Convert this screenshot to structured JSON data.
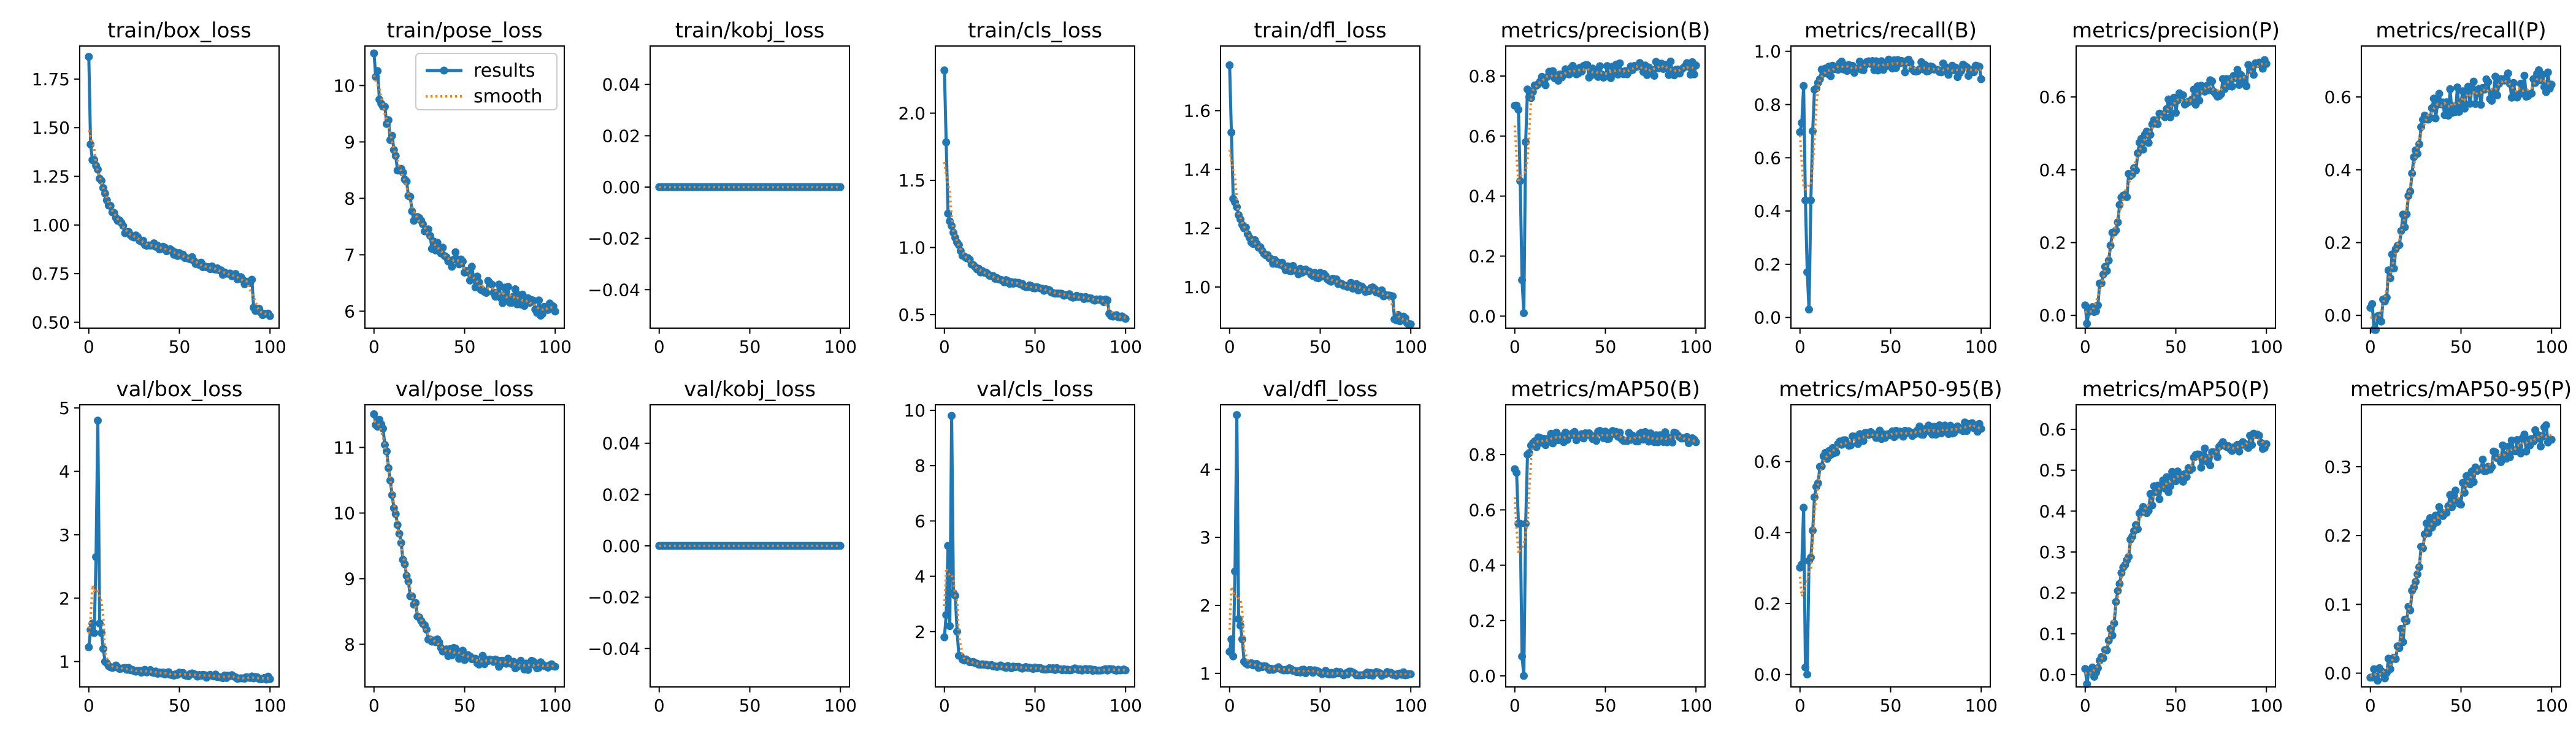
{
  "chart_data": {
    "type": "line",
    "legend": {
      "location": "upper-right",
      "panel": "train/pose_loss",
      "items": [
        {
          "label": "results",
          "color": "#1f77b4",
          "style": "solid-with-markers"
        },
        {
          "label": "smooth",
          "color": "#ff7f0e",
          "style": "dotted"
        }
      ]
    },
    "colors": {
      "results": "#1f77b4",
      "smooth": "#ff7f0e"
    },
    "x": {
      "ylim_note": "epochs 0-100",
      "xlim": [
        -5,
        105
      ],
      "xticks": [
        0,
        50,
        100
      ]
    },
    "panels": [
      {
        "title": "train/box_loss",
        "ylim": [
          0.47,
          1.92
        ],
        "yticks": [
          0.5,
          0.75,
          1.0,
          1.25,
          1.5,
          1.75
        ],
        "ytick_labels": [
          "0.50",
          "0.75",
          "1.00",
          "1.25",
          "1.50",
          "1.75"
        ],
        "kp": [
          [
            0,
            1.86
          ],
          [
            1,
            1.42
          ],
          [
            2,
            1.33
          ],
          [
            3,
            1.32
          ],
          [
            5,
            1.28
          ],
          [
            10,
            1.12
          ],
          [
            20,
            0.97
          ],
          [
            30,
            0.91
          ],
          [
            40,
            0.88
          ],
          [
            50,
            0.85
          ],
          [
            60,
            0.81
          ],
          [
            70,
            0.77
          ],
          [
            80,
            0.74
          ],
          [
            88,
            0.7
          ],
          [
            90,
            0.71
          ],
          [
            91,
            0.57
          ],
          [
            95,
            0.55
          ],
          [
            100,
            0.53
          ]
        ],
        "noise": 0.015,
        "spikes": []
      },
      {
        "title": "train/pose_loss",
        "ylim": [
          5.7,
          10.7
        ],
        "yticks": [
          6,
          7,
          8,
          9,
          10
        ],
        "ytick_labels": [
          "6",
          "7",
          "8",
          "9",
          "10"
        ],
        "kp": [
          [
            0,
            10.5
          ],
          [
            3,
            9.9
          ],
          [
            10,
            9.0
          ],
          [
            20,
            7.9
          ],
          [
            30,
            7.3
          ],
          [
            40,
            7.0
          ],
          [
            50,
            6.75
          ],
          [
            60,
            6.5
          ],
          [
            70,
            6.3
          ],
          [
            80,
            6.2
          ],
          [
            90,
            6.1
          ],
          [
            100,
            6.05
          ]
        ],
        "noise": 0.18,
        "spikes": []
      },
      {
        "title": "train/kobj_loss",
        "ylim": [
          -0.055,
          0.055
        ],
        "yticks": [
          -0.04,
          -0.02,
          0.0,
          0.02,
          0.04
        ],
        "ytick_labels": [
          "−0.04",
          "−0.02",
          "0.00",
          "0.02",
          "0.04"
        ],
        "kp": [
          [
            0,
            0
          ],
          [
            100,
            0
          ]
        ],
        "noise": 0,
        "spikes": []
      },
      {
        "title": "train/cls_loss",
        "ylim": [
          0.4,
          2.5
        ],
        "yticks": [
          0.5,
          1.0,
          1.5,
          2.0
        ],
        "ytick_labels": [
          "0.5",
          "1.0",
          "1.5",
          "2.0"
        ],
        "kp": [
          [
            0,
            2.32
          ],
          [
            2,
            1.25
          ],
          [
            5,
            1.1
          ],
          [
            10,
            0.95
          ],
          [
            20,
            0.82
          ],
          [
            30,
            0.76
          ],
          [
            40,
            0.73
          ],
          [
            50,
            0.7
          ],
          [
            60,
            0.67
          ],
          [
            70,
            0.64
          ],
          [
            80,
            0.62
          ],
          [
            90,
            0.6
          ],
          [
            91,
            0.5
          ],
          [
            100,
            0.47
          ]
        ],
        "noise": 0.012,
        "spikes": []
      },
      {
        "title": "train/dfl_loss",
        "ylim": [
          0.86,
          1.82
        ],
        "yticks": [
          1.0,
          1.2,
          1.4,
          1.6
        ],
        "ytick_labels": [
          "1.0",
          "1.2",
          "1.4",
          "1.6"
        ],
        "kp": [
          [
            0,
            1.75
          ],
          [
            2,
            1.3
          ],
          [
            5,
            1.25
          ],
          [
            10,
            1.18
          ],
          [
            20,
            1.1
          ],
          [
            30,
            1.07
          ],
          [
            40,
            1.05
          ],
          [
            50,
            1.04
          ],
          [
            60,
            1.02
          ],
          [
            70,
            1.0
          ],
          [
            80,
            0.99
          ],
          [
            90,
            0.97
          ],
          [
            91,
            0.9
          ],
          [
            100,
            0.88
          ]
        ],
        "noise": 0.012,
        "spikes": []
      },
      {
        "title": "metrics/precision(B)",
        "ylim": [
          -0.04,
          0.9
        ],
        "yticks": [
          0.0,
          0.2,
          0.4,
          0.6,
          0.8
        ],
        "ytick_labels": [
          "0.0",
          "0.2",
          "0.4",
          "0.6",
          "0.8"
        ],
        "kp": [
          [
            0,
            0.68
          ],
          [
            8,
            0.74
          ],
          [
            15,
            0.79
          ],
          [
            30,
            0.81
          ],
          [
            60,
            0.82
          ],
          [
            100,
            0.83
          ]
        ],
        "noise": 0.025,
        "spikes": [
          [
            3,
            0.45
          ],
          [
            4,
            0.12
          ],
          [
            5,
            0.01
          ],
          [
            6,
            0.58
          ]
        ]
      },
      {
        "title": "metrics/recall(B)",
        "ylim": [
          -0.04,
          1.02
        ],
        "yticks": [
          0.0,
          0.2,
          0.4,
          0.6,
          0.8,
          1.0
        ],
        "ytick_labels": [
          "0.0",
          "0.2",
          "0.4",
          "0.6",
          "0.8",
          "1.0"
        ],
        "kp": [
          [
            0,
            0.72
          ],
          [
            10,
            0.9
          ],
          [
            20,
            0.94
          ],
          [
            50,
            0.95
          ],
          [
            100,
            0.92
          ]
        ],
        "noise": 0.025,
        "spikes": [
          [
            2,
            0.87
          ],
          [
            3,
            0.44
          ],
          [
            4,
            0.17
          ],
          [
            5,
            0.03
          ],
          [
            6,
            0.44
          ],
          [
            7,
            0.7
          ]
        ]
      },
      {
        "title": "metrics/precision(P)",
        "ylim": [
          -0.035,
          0.74
        ],
        "yticks": [
          0.0,
          0.2,
          0.4,
          0.6
        ],
        "ytick_labels": [
          "0.0",
          "0.2",
          "0.4",
          "0.6"
        ],
        "kp": [
          [
            0,
            0.0
          ],
          [
            5,
            0.0
          ],
          [
            10,
            0.1
          ],
          [
            20,
            0.3
          ],
          [
            30,
            0.45
          ],
          [
            40,
            0.55
          ],
          [
            50,
            0.58
          ],
          [
            70,
            0.62
          ],
          [
            85,
            0.65
          ],
          [
            100,
            0.68
          ]
        ],
        "noise": 0.03,
        "spikes": []
      },
      {
        "title": "metrics/recall(P)",
        "ylim": [
          -0.035,
          0.74
        ],
        "yticks": [
          0.0,
          0.2,
          0.4,
          0.6
        ],
        "ytick_labels": [
          "0.0",
          "0.2",
          "0.4",
          "0.6"
        ],
        "kp": [
          [
            0,
            0.0
          ],
          [
            5,
            0.0
          ],
          [
            10,
            0.1
          ],
          [
            20,
            0.3
          ],
          [
            25,
            0.45
          ],
          [
            30,
            0.55
          ],
          [
            40,
            0.58
          ],
          [
            50,
            0.6
          ],
          [
            70,
            0.63
          ],
          [
            100,
            0.65
          ]
        ],
        "noise": 0.04,
        "spikes": []
      },
      {
        "title": "val/box_loss",
        "ylim": [
          0.6,
          5.05
        ],
        "yticks": [
          1,
          2,
          3,
          4,
          5
        ],
        "ytick_labels": [
          "1",
          "2",
          "3",
          "4",
          "5"
        ],
        "kp": [
          [
            0,
            1.25
          ],
          [
            10,
            0.95
          ],
          [
            20,
            0.88
          ],
          [
            40,
            0.82
          ],
          [
            60,
            0.78
          ],
          [
            80,
            0.76
          ],
          [
            100,
            0.74
          ]
        ],
        "noise": 0.03,
        "spikes": [
          [
            1,
            1.5
          ],
          [
            2,
            1.6
          ],
          [
            3,
            1.45
          ],
          [
            4,
            2.65
          ],
          [
            5,
            4.8
          ],
          [
            6,
            1.6
          ],
          [
            7,
            1.45
          ],
          [
            8,
            1.2
          ]
        ]
      },
      {
        "title": "val/pose_loss",
        "ylim": [
          7.35,
          11.65
        ],
        "yticks": [
          8,
          9,
          10,
          11
        ],
        "ytick_labels": [
          "8",
          "9",
          "10",
          "11"
        ],
        "kp": [
          [
            0,
            11.45
          ],
          [
            5,
            11.3
          ],
          [
            10,
            10.2
          ],
          [
            15,
            9.5
          ],
          [
            20,
            8.8
          ],
          [
            25,
            8.4
          ],
          [
            30,
            8.1
          ],
          [
            40,
            7.9
          ],
          [
            60,
            7.75
          ],
          [
            100,
            7.65
          ]
        ],
        "noise": 0.08,
        "spikes": []
      },
      {
        "title": "val/kobj_loss",
        "ylim": [
          -0.055,
          0.055
        ],
        "yticks": [
          -0.04,
          -0.02,
          0.0,
          0.02,
          0.04
        ],
        "ytick_labels": [
          "−0.04",
          "−0.02",
          "0.00",
          "0.02",
          "0.04"
        ],
        "kp": [
          [
            0,
            0
          ],
          [
            100,
            0
          ]
        ],
        "noise": 0,
        "spikes": []
      },
      {
        "title": "val/cls_loss",
        "ylim": [
          0.0,
          10.2
        ],
        "yticks": [
          2,
          4,
          6,
          8,
          10
        ],
        "ytick_labels": [
          "2",
          "4",
          "6",
          "8",
          "10"
        ],
        "kp": [
          [
            0,
            1.8
          ],
          [
            10,
            1.0
          ],
          [
            20,
            0.8
          ],
          [
            40,
            0.7
          ],
          [
            60,
            0.65
          ],
          [
            80,
            0.62
          ],
          [
            100,
            0.6
          ]
        ],
        "noise": 0.04,
        "spikes": [
          [
            1,
            2.6
          ],
          [
            2,
            5.1
          ],
          [
            3,
            2.2
          ],
          [
            4,
            9.8
          ],
          [
            5,
            3.4
          ],
          [
            6,
            3.3
          ],
          [
            7,
            2.0
          ]
        ]
      },
      {
        "title": "val/dfl_loss",
        "ylim": [
          0.8,
          4.95
        ],
        "yticks": [
          1,
          2,
          3,
          4
        ],
        "ytick_labels": [
          "1",
          "2",
          "3",
          "4"
        ],
        "kp": [
          [
            0,
            1.3
          ],
          [
            10,
            1.15
          ],
          [
            20,
            1.08
          ],
          [
            40,
            1.03
          ],
          [
            60,
            1.0
          ],
          [
            100,
            0.99
          ]
        ],
        "noise": 0.03,
        "spikes": [
          [
            1,
            1.5
          ],
          [
            2,
            1.25
          ],
          [
            3,
            2.5
          ],
          [
            4,
            4.8
          ],
          [
            5,
            1.8
          ],
          [
            6,
            1.7
          ],
          [
            7,
            1.5
          ]
        ]
      },
      {
        "title": "metrics/mAP50(B)",
        "ylim": [
          -0.04,
          0.98
        ],
        "yticks": [
          0.0,
          0.2,
          0.4,
          0.6,
          0.8
        ],
        "ytick_labels": [
          "0.0",
          "0.2",
          "0.4",
          "0.6",
          "0.8"
        ],
        "kp": [
          [
            0,
            0.74
          ],
          [
            10,
            0.84
          ],
          [
            20,
            0.86
          ],
          [
            50,
            0.87
          ],
          [
            100,
            0.86
          ]
        ],
        "noise": 0.02,
        "spikes": [
          [
            2,
            0.55
          ],
          [
            3,
            0.55
          ],
          [
            4,
            0.07
          ],
          [
            5,
            0.0
          ],
          [
            6,
            0.55
          ],
          [
            7,
            0.8
          ]
        ]
      },
      {
        "title": "metrics/mAP50-95(B)",
        "ylim": [
          -0.035,
          0.76
        ],
        "yticks": [
          0.0,
          0.2,
          0.4,
          0.6
        ],
        "ytick_labels": [
          "0.0",
          "0.2",
          "0.4",
          "0.6"
        ],
        "kp": [
          [
            0,
            0.31
          ],
          [
            6,
            0.33
          ],
          [
            8,
            0.5
          ],
          [
            12,
            0.6
          ],
          [
            20,
            0.64
          ],
          [
            30,
            0.66
          ],
          [
            50,
            0.68
          ],
          [
            80,
            0.69
          ],
          [
            100,
            0.7
          ]
        ],
        "noise": 0.015,
        "spikes": [
          [
            2,
            0.47
          ],
          [
            3,
            0.02
          ],
          [
            4,
            0.0
          ],
          [
            5,
            0.32
          ]
        ]
      },
      {
        "title": "metrics/mAP50(P)",
        "ylim": [
          -0.03,
          0.66
        ],
        "yticks": [
          0.0,
          0.1,
          0.2,
          0.3,
          0.4,
          0.5,
          0.6
        ],
        "ytick_labels": [
          "0.0",
          "0.1",
          "0.2",
          "0.3",
          "0.4",
          "0.5",
          "0.6"
        ],
        "kp": [
          [
            0,
            0.0
          ],
          [
            5,
            0.0
          ],
          [
            10,
            0.03
          ],
          [
            15,
            0.12
          ],
          [
            20,
            0.24
          ],
          [
            30,
            0.38
          ],
          [
            40,
            0.45
          ],
          [
            50,
            0.48
          ],
          [
            60,
            0.52
          ],
          [
            80,
            0.55
          ],
          [
            100,
            0.58
          ]
        ],
        "noise": 0.025,
        "spikes": []
      },
      {
        "title": "metrics/mAP50-95(P)",
        "ylim": [
          -0.02,
          0.39
        ],
        "yticks": [
          0.0,
          0.1,
          0.2,
          0.3
        ],
        "ytick_labels": [
          "0.0",
          "0.1",
          "0.2",
          "0.3"
        ],
        "kp": [
          [
            0,
            0.0
          ],
          [
            8,
            0.0
          ],
          [
            15,
            0.03
          ],
          [
            20,
            0.08
          ],
          [
            30,
            0.2
          ],
          [
            40,
            0.24
          ],
          [
            50,
            0.26
          ],
          [
            60,
            0.3
          ],
          [
            80,
            0.33
          ],
          [
            100,
            0.35
          ]
        ],
        "noise": 0.015,
        "spikes": []
      }
    ]
  }
}
